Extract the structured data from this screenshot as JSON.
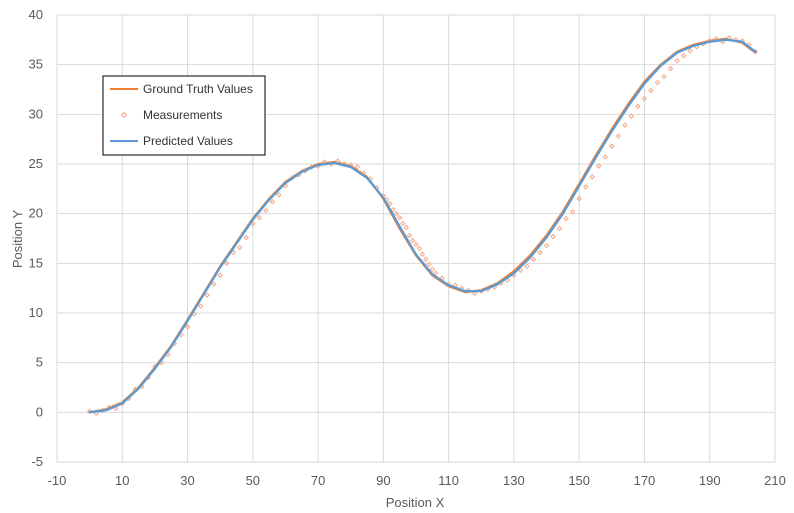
{
  "colors": {
    "ground_truth": "#ED7D31",
    "measurements": "#F4A582",
    "predicted": "#5B9BD5",
    "grid": "#D9D9D9",
    "axis_text": "#595959"
  },
  "chart_data": {
    "type": "line",
    "title": "",
    "xlabel": "Position X",
    "ylabel": "Position Y",
    "xlim": [
      -10,
      210
    ],
    "ylim": [
      -5,
      40
    ],
    "xticks": [
      -10,
      10,
      30,
      50,
      70,
      90,
      110,
      130,
      150,
      170,
      190,
      210
    ],
    "yticks": [
      -5,
      0,
      5,
      10,
      15,
      20,
      25,
      30,
      35,
      40
    ],
    "grid": true,
    "legend_position": "top-left",
    "series": [
      {
        "name": "Ground Truth Values",
        "kind": "line",
        "color": "#ED7D31",
        "x": [
          0,
          5,
          10,
          15,
          20,
          25,
          30,
          35,
          40,
          45,
          50,
          55,
          60,
          65,
          70,
          75,
          80,
          85,
          90,
          95,
          100,
          105,
          110,
          115,
          120,
          125,
          130,
          135,
          140,
          145,
          150,
          155,
          160,
          165,
          170,
          175,
          180,
          185,
          190,
          195,
          200,
          204
        ],
        "y": [
          0,
          0.3,
          1.0,
          2.5,
          4.5,
          6.7,
          9.3,
          12.0,
          14.7,
          17.1,
          19.5,
          21.5,
          23.2,
          24.3,
          25.0,
          25.2,
          24.8,
          23.7,
          21.5,
          18.5,
          15.8,
          13.8,
          12.7,
          12.1,
          12.3,
          13.0,
          14.2,
          15.8,
          17.8,
          20.2,
          23.0,
          25.8,
          28.5,
          31.0,
          33.3,
          35.0,
          36.3,
          37.0,
          37.4,
          37.6,
          37.2,
          36.2
        ]
      },
      {
        "name": "Measurements",
        "kind": "scatter",
        "color": "#F4A582",
        "x": [
          0,
          2,
          4,
          6,
          8,
          10,
          12,
          14,
          16,
          18,
          20,
          22,
          24,
          26,
          28,
          30,
          32,
          34,
          36,
          38,
          40,
          42,
          44,
          46,
          48,
          50,
          52,
          54,
          56,
          58,
          60,
          62,
          64,
          66,
          68,
          70,
          72,
          74,
          76,
          78,
          80,
          82,
          84,
          86,
          88,
          90,
          91,
          92,
          93,
          94,
          95,
          96,
          97,
          98,
          99,
          100,
          101,
          102,
          103,
          104,
          105,
          106,
          108,
          110,
          112,
          114,
          116,
          118,
          120,
          122,
          124,
          126,
          128,
          130,
          132,
          134,
          136,
          138,
          140,
          142,
          144,
          146,
          148,
          150,
          152,
          154,
          156,
          158,
          160,
          162,
          164,
          166,
          168,
          170,
          172,
          174,
          176,
          178,
          180,
          182,
          184,
          186,
          188,
          190,
          192,
          194,
          196,
          198,
          200,
          202,
          204
        ],
        "y": [
          0.1,
          -0.1,
          0.2,
          0.5,
          0.4,
          0.9,
          1.4,
          2.3,
          2.6,
          3.5,
          4.6,
          5.0,
          5.8,
          6.9,
          7.8,
          8.6,
          9.9,
          10.7,
          11.8,
          12.9,
          13.8,
          15.0,
          16.1,
          16.6,
          17.6,
          19.0,
          19.6,
          20.3,
          21.2,
          21.9,
          22.8,
          23.6,
          23.9,
          24.3,
          24.7,
          24.8,
          25.2,
          25.0,
          25.3,
          25.0,
          24.9,
          24.7,
          24.1,
          23.5,
          22.6,
          21.8,
          21.4,
          21.0,
          20.4,
          20.0,
          19.6,
          19.0,
          18.6,
          17.8,
          17.3,
          16.9,
          16.5,
          15.9,
          15.4,
          14.9,
          14.4,
          14.0,
          13.5,
          12.9,
          12.8,
          12.5,
          12.3,
          12.0,
          12.2,
          12.4,
          12.6,
          13.0,
          13.3,
          13.8,
          14.3,
          14.7,
          15.4,
          16.1,
          16.8,
          17.7,
          18.5,
          19.5,
          20.2,
          21.5,
          22.7,
          23.7,
          24.8,
          25.7,
          26.8,
          27.8,
          28.9,
          29.8,
          30.8,
          31.6,
          32.4,
          33.2,
          33.8,
          34.6,
          35.4,
          35.9,
          36.4,
          36.8,
          37.1,
          37.4,
          37.6,
          37.3,
          37.7,
          37.5,
          37.4,
          37.0,
          36.3
        ]
      },
      {
        "name": "Predicted Values",
        "kind": "line",
        "color": "#5B9BD5",
        "x": [
          0,
          5,
          10,
          15,
          20,
          25,
          30,
          35,
          40,
          45,
          50,
          55,
          60,
          65,
          70,
          75,
          80,
          85,
          90,
          95,
          100,
          105,
          110,
          115,
          120,
          125,
          130,
          135,
          140,
          145,
          150,
          155,
          160,
          165,
          170,
          175,
          180,
          185,
          190,
          195,
          200,
          204
        ],
        "y": [
          0,
          0.2,
          0.9,
          2.4,
          4.4,
          6.6,
          9.2,
          11.9,
          14.6,
          17.0,
          19.4,
          21.4,
          23.1,
          24.2,
          24.9,
          25.1,
          24.7,
          23.6,
          21.6,
          18.7,
          15.9,
          13.9,
          12.8,
          12.2,
          12.2,
          12.9,
          14.0,
          15.6,
          17.6,
          20.0,
          22.8,
          25.6,
          28.3,
          30.8,
          33.1,
          34.9,
          36.2,
          36.9,
          37.3,
          37.5,
          37.3,
          36.3
        ]
      }
    ]
  }
}
